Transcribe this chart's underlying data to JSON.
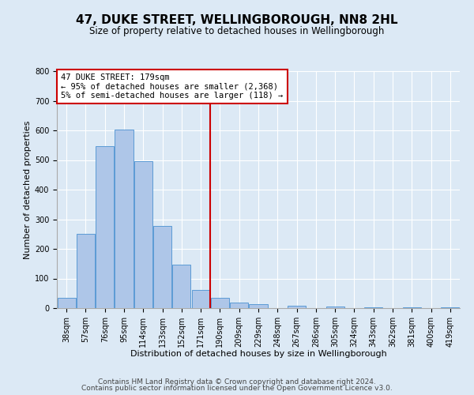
{
  "title": "47, DUKE STREET, WELLINGBOROUGH, NN8 2HL",
  "subtitle": "Size of property relative to detached houses in Wellingborough",
  "xlabel": "Distribution of detached houses by size in Wellingborough",
  "ylabel": "Number of detached properties",
  "bar_labels": [
    "38sqm",
    "57sqm",
    "76sqm",
    "95sqm",
    "114sqm",
    "133sqm",
    "152sqm",
    "171sqm",
    "190sqm",
    "209sqm",
    "229sqm",
    "248sqm",
    "267sqm",
    "286sqm",
    "305sqm",
    "324sqm",
    "343sqm",
    "362sqm",
    "381sqm",
    "400sqm",
    "419sqm"
  ],
  "bar_values": [
    35,
    250,
    548,
    603,
    495,
    278,
    148,
    62,
    35,
    20,
    14,
    0,
    8,
    0,
    5,
    0,
    4,
    0,
    3,
    0,
    2
  ],
  "bar_color": "#aec6e8",
  "bar_edge_color": "#5b9bd5",
  "vline_x": 7.5,
  "vline_color": "#cc0000",
  "annotation_line1": "47 DUKE STREET: 179sqm",
  "annotation_line2": "← 95% of detached houses are smaller (2,368)",
  "annotation_line3": "5% of semi-detached houses are larger (118) →",
  "annotation_box_edge_color": "#cc0000",
  "ylim": [
    0,
    800
  ],
  "yticks": [
    0,
    100,
    200,
    300,
    400,
    500,
    600,
    700,
    800
  ],
  "background_color": "#dce9f5",
  "plot_bg_color": "#dce9f5",
  "footer1": "Contains HM Land Registry data © Crown copyright and database right 2024.",
  "footer2": "Contains public sector information licensed under the Open Government Licence v3.0.",
  "title_fontsize": 11,
  "subtitle_fontsize": 8.5,
  "axis_label_fontsize": 8,
  "tick_fontsize": 7,
  "annotation_fontsize": 7.5,
  "footer_fontsize": 6.5
}
